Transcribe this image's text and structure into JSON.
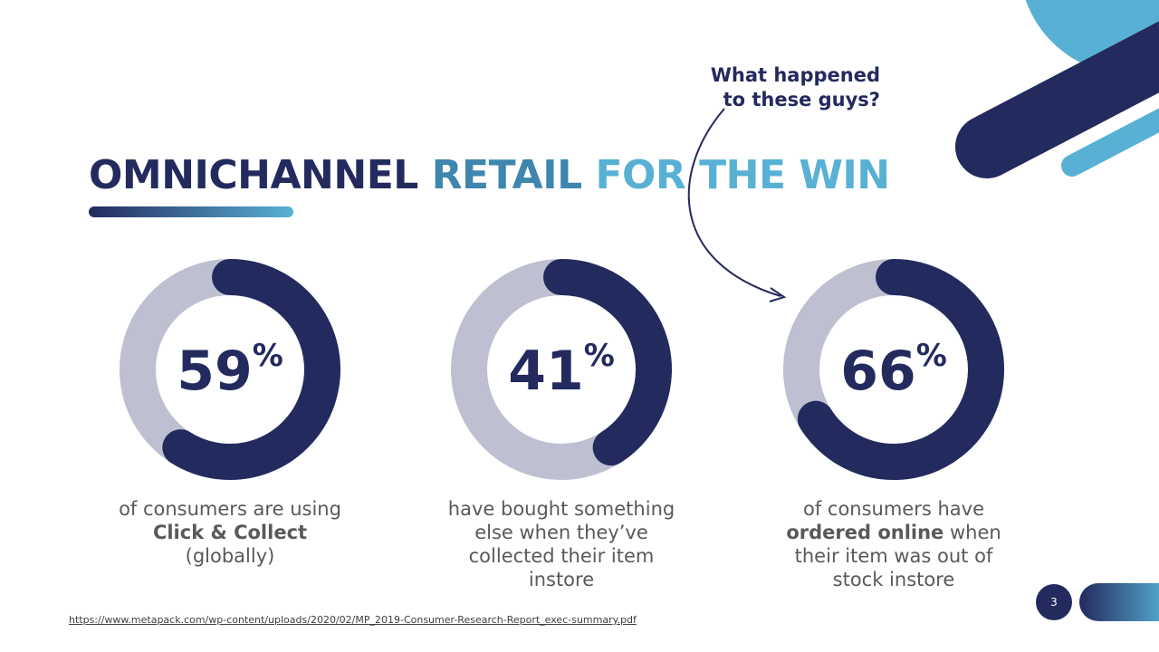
{
  "slide": {
    "title_part1": "OMNICHANNEL",
    "title_part2": "RETAIL",
    "title_part3": "FOR THE WIN",
    "callout_line1": "What happened",
    "callout_line2": "to these guys?",
    "source_url": "https://www.metapack.com/wp-content/uploads/2020/02/MP_2019-Consumer-Research-Report_exec-summary.pdf",
    "page_number": "3"
  },
  "colors": {
    "navy": "#232a5e",
    "light_blue": "#58b1d4",
    "mid_blue": "#3f86ae",
    "ring_track": "#bebfd0",
    "caption_gray": "#595959"
  },
  "chart_data": [
    {
      "type": "pie",
      "style": "donut",
      "values": [
        59,
        41
      ],
      "value_label": "59",
      "unit": "%",
      "caption": {
        "line1": "of consumers are using",
        "line2_bold": "Click & Collect",
        "line3": "(globally)"
      }
    },
    {
      "type": "pie",
      "style": "donut",
      "values": [
        41,
        59
      ],
      "value_label": "41",
      "unit": "%",
      "caption": {
        "line1": "have bought something",
        "line2": "else when they’ve",
        "line3": "collected their item",
        "line4": "instore"
      }
    },
    {
      "type": "pie",
      "style": "donut",
      "values": [
        66,
        34
      ],
      "value_label": "66",
      "unit": "%",
      "caption": {
        "line1": "of consumers have",
        "line2_bold": "ordered online",
        "line2_rest": " when",
        "line3": "their item was out of",
        "line4": "stock instore"
      }
    }
  ]
}
